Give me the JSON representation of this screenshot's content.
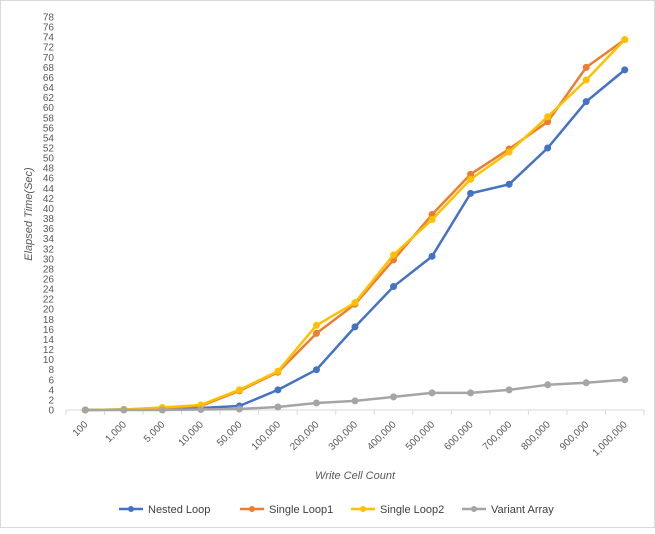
{
  "chart_data": {
    "type": "line",
    "title": "",
    "xlabel": "Write Cell Count",
    "ylabel": "Elapsed Time(Sec)",
    "ylim": [
      0,
      78
    ],
    "ytick_step": 2,
    "grid": false,
    "legend_position": "bottom",
    "categories": [
      "100",
      "1,000",
      "5,000",
      "10,000",
      "50,000",
      "100,000",
      "200,000",
      "300,000",
      "400,000",
      "500,000",
      "600,000",
      "700,000",
      "800,000",
      "900,000",
      "1,000,000"
    ],
    "series": [
      {
        "name": "Nested Loop",
        "color": "#4472C4",
        "values": [
          0.0,
          0.1,
          0.2,
          0.4,
          0.8,
          4.0,
          8.0,
          16.5,
          24.5,
          30.5,
          43.0,
          44.8,
          52.0,
          61.2,
          67.5
        ]
      },
      {
        "name": "Single Loop1",
        "color": "#ED7D31",
        "values": [
          0.0,
          0.1,
          0.4,
          0.8,
          3.8,
          7.5,
          15.2,
          21.0,
          29.8,
          38.8,
          46.8,
          51.8,
          57.2,
          68.0,
          73.5
        ]
      },
      {
        "name": "Single Loop2",
        "color": "#FFC000",
        "values": [
          0.0,
          0.1,
          0.5,
          1.0,
          4.0,
          7.7,
          16.8,
          21.3,
          30.8,
          37.8,
          45.8,
          51.2,
          58.2,
          65.5,
          73.5
        ]
      },
      {
        "name": "Variant Array",
        "color": "#A5A5A5",
        "values": [
          0.0,
          0.0,
          0.0,
          0.1,
          0.2,
          0.6,
          1.4,
          1.8,
          2.6,
          3.4,
          3.4,
          4.0,
          5.0,
          5.4,
          6.0
        ]
      }
    ]
  }
}
